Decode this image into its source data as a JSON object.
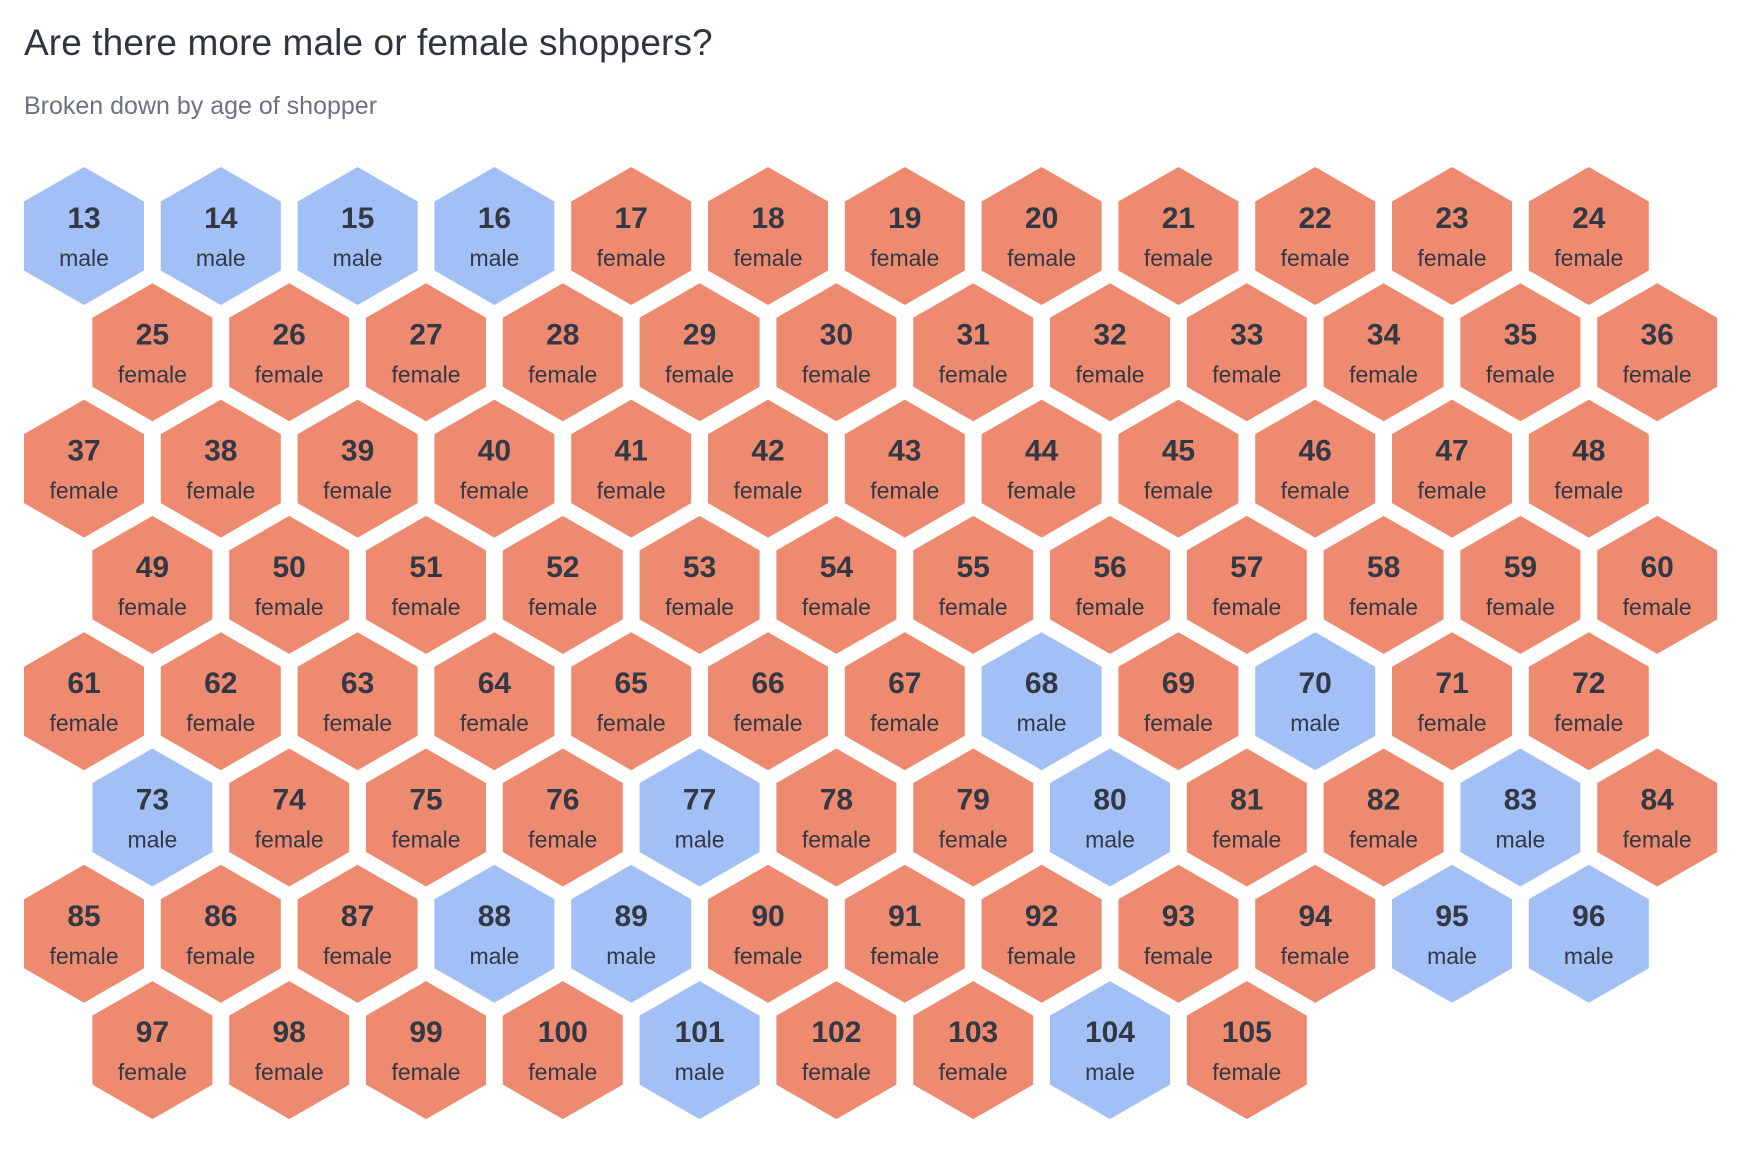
{
  "title": "Are there more male or female shoppers?",
  "subtitle": "Broken down by age of shopper",
  "colors": {
    "male": "#a2bff6",
    "female": "#ee8a6f"
  },
  "chart_data": {
    "type": "hexbin",
    "title": "Are there more male or female shoppers?",
    "subtitle": "Broken down by age of shopper",
    "columns_per_row": 12,
    "categories": [
      "male",
      "female"
    ],
    "cells": [
      {
        "age": 13,
        "gender": "male"
      },
      {
        "age": 14,
        "gender": "male"
      },
      {
        "age": 15,
        "gender": "male"
      },
      {
        "age": 16,
        "gender": "male"
      },
      {
        "age": 17,
        "gender": "female"
      },
      {
        "age": 18,
        "gender": "female"
      },
      {
        "age": 19,
        "gender": "female"
      },
      {
        "age": 20,
        "gender": "female"
      },
      {
        "age": 21,
        "gender": "female"
      },
      {
        "age": 22,
        "gender": "female"
      },
      {
        "age": 23,
        "gender": "female"
      },
      {
        "age": 24,
        "gender": "female"
      },
      {
        "age": 25,
        "gender": "female"
      },
      {
        "age": 26,
        "gender": "female"
      },
      {
        "age": 27,
        "gender": "female"
      },
      {
        "age": 28,
        "gender": "female"
      },
      {
        "age": 29,
        "gender": "female"
      },
      {
        "age": 30,
        "gender": "female"
      },
      {
        "age": 31,
        "gender": "female"
      },
      {
        "age": 32,
        "gender": "female"
      },
      {
        "age": 33,
        "gender": "female"
      },
      {
        "age": 34,
        "gender": "female"
      },
      {
        "age": 35,
        "gender": "female"
      },
      {
        "age": 36,
        "gender": "female"
      },
      {
        "age": 37,
        "gender": "female"
      },
      {
        "age": 38,
        "gender": "female"
      },
      {
        "age": 39,
        "gender": "female"
      },
      {
        "age": 40,
        "gender": "female"
      },
      {
        "age": 41,
        "gender": "female"
      },
      {
        "age": 42,
        "gender": "female"
      },
      {
        "age": 43,
        "gender": "female"
      },
      {
        "age": 44,
        "gender": "female"
      },
      {
        "age": 45,
        "gender": "female"
      },
      {
        "age": 46,
        "gender": "female"
      },
      {
        "age": 47,
        "gender": "female"
      },
      {
        "age": 48,
        "gender": "female"
      },
      {
        "age": 49,
        "gender": "female"
      },
      {
        "age": 50,
        "gender": "female"
      },
      {
        "age": 51,
        "gender": "female"
      },
      {
        "age": 52,
        "gender": "female"
      },
      {
        "age": 53,
        "gender": "female"
      },
      {
        "age": 54,
        "gender": "female"
      },
      {
        "age": 55,
        "gender": "female"
      },
      {
        "age": 56,
        "gender": "female"
      },
      {
        "age": 57,
        "gender": "female"
      },
      {
        "age": 58,
        "gender": "female"
      },
      {
        "age": 59,
        "gender": "female"
      },
      {
        "age": 60,
        "gender": "female"
      },
      {
        "age": 61,
        "gender": "female"
      },
      {
        "age": 62,
        "gender": "female"
      },
      {
        "age": 63,
        "gender": "female"
      },
      {
        "age": 64,
        "gender": "female"
      },
      {
        "age": 65,
        "gender": "female"
      },
      {
        "age": 66,
        "gender": "female"
      },
      {
        "age": 67,
        "gender": "female"
      },
      {
        "age": 68,
        "gender": "male"
      },
      {
        "age": 69,
        "gender": "female"
      },
      {
        "age": 70,
        "gender": "male"
      },
      {
        "age": 71,
        "gender": "female"
      },
      {
        "age": 72,
        "gender": "female"
      },
      {
        "age": 73,
        "gender": "male"
      },
      {
        "age": 74,
        "gender": "female"
      },
      {
        "age": 75,
        "gender": "female"
      },
      {
        "age": 76,
        "gender": "female"
      },
      {
        "age": 77,
        "gender": "male"
      },
      {
        "age": 78,
        "gender": "female"
      },
      {
        "age": 79,
        "gender": "female"
      },
      {
        "age": 80,
        "gender": "male"
      },
      {
        "age": 81,
        "gender": "female"
      },
      {
        "age": 82,
        "gender": "female"
      },
      {
        "age": 83,
        "gender": "male"
      },
      {
        "age": 84,
        "gender": "female"
      },
      {
        "age": 85,
        "gender": "female"
      },
      {
        "age": 86,
        "gender": "female"
      },
      {
        "age": 87,
        "gender": "female"
      },
      {
        "age": 88,
        "gender": "male"
      },
      {
        "age": 89,
        "gender": "male"
      },
      {
        "age": 90,
        "gender": "female"
      },
      {
        "age": 91,
        "gender": "female"
      },
      {
        "age": 92,
        "gender": "female"
      },
      {
        "age": 93,
        "gender": "female"
      },
      {
        "age": 94,
        "gender": "female"
      },
      {
        "age": 95,
        "gender": "male"
      },
      {
        "age": 96,
        "gender": "male"
      },
      {
        "age": 97,
        "gender": "female"
      },
      {
        "age": 98,
        "gender": "female"
      },
      {
        "age": 99,
        "gender": "female"
      },
      {
        "age": 100,
        "gender": "female"
      },
      {
        "age": 101,
        "gender": "male"
      },
      {
        "age": 102,
        "gender": "female"
      },
      {
        "age": 103,
        "gender": "female"
      },
      {
        "age": 104,
        "gender": "male"
      },
      {
        "age": 105,
        "gender": "female"
      }
    ]
  }
}
